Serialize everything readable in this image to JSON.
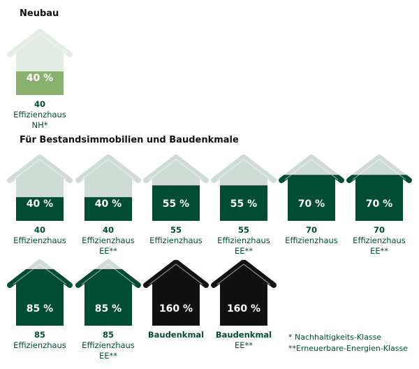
{
  "sections": [
    {
      "title": "Neubau",
      "houses": [
        {
          "value": "40 %",
          "fill_percent": 40,
          "number": "40",
          "label": "Effizienzhaus",
          "suffix": "NH*",
          "fill_color": "#8ab06e",
          "bg_color": "#e4ece6"
        }
      ]
    },
    {
      "title": "Für Bestandsimmobilien und Baudenkmale",
      "houses": [
        {
          "value": "40 %",
          "fill_percent": 40,
          "number": "40",
          "label": "Effizienzhaus",
          "suffix": "",
          "fill_color": "#004d33",
          "bg_color": "#cfdcd6"
        },
        {
          "value": "40 %",
          "fill_percent": 40,
          "number": "40",
          "label": "Effizienzhaus",
          "suffix": "EE**",
          "fill_color": "#004d33",
          "bg_color": "#cfdcd6"
        },
        {
          "value": "55 %",
          "fill_percent": 55,
          "number": "55",
          "label": "Effizienzhaus",
          "suffix": "",
          "fill_color": "#004d33",
          "bg_color": "#cfdcd6"
        },
        {
          "value": "55 %",
          "fill_percent": 55,
          "number": "55",
          "label": "Effizienzhaus",
          "suffix": "EE**",
          "fill_color": "#004d33",
          "bg_color": "#cfdcd6"
        },
        {
          "value": "70 %",
          "fill_percent": 70,
          "number": "70",
          "label": "Effizienzhaus",
          "suffix": "",
          "fill_color": "#004d33",
          "bg_color": "#cfdcd6"
        },
        {
          "value": "70 %",
          "fill_percent": 70,
          "number": "70",
          "label": "Effizienzhaus",
          "suffix": "EE**",
          "fill_color": "#004d33",
          "bg_color": "#cfdcd6"
        },
        {
          "value": "85 %",
          "fill_percent": 85,
          "number": "85",
          "label": "Effizienzhaus",
          "suffix": "",
          "fill_color": "#004d33",
          "bg_color": "#cfdcd6"
        },
        {
          "value": "85 %",
          "fill_percent": 85,
          "number": "85",
          "label": "Effizienzhaus",
          "suffix": "EE**",
          "fill_color": "#004d33",
          "bg_color": "#cfdcd6"
        },
        {
          "value": "160 %",
          "fill_percent": 160,
          "number": "",
          "label": "Baudenkmal",
          "suffix": "",
          "fill_color": "#111111",
          "bg_color": "#cfdcd6"
        },
        {
          "value": "160 %",
          "fill_percent": 160,
          "number": "",
          "label": "Baudenkmal",
          "suffix": "EE**",
          "fill_color": "#111111",
          "bg_color": "#cfdcd6"
        }
      ]
    }
  ],
  "footnotes": [
    "* Nachhaltigkeits-Klasse",
    "**Erneuerbare-Energien-Klasse"
  ]
}
